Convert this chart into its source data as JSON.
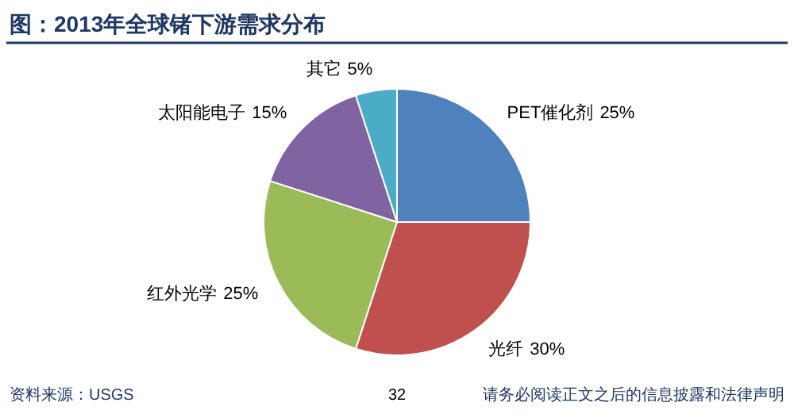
{
  "chart_data": {
    "type": "pie",
    "title": "图：2013年全球锗下游需求分布",
    "categories": [
      "PET催化剂",
      "光纤",
      "红外光学",
      "太阳能电子",
      "其它"
    ],
    "values": [
      25,
      30,
      25,
      15,
      5
    ],
    "colors": [
      "#4f81bd",
      "#c0504d",
      "#9bbb59",
      "#8064a2",
      "#4bacc6"
    ],
    "value_labels": [
      "25%",
      "30%",
      "25%",
      "15%",
      "5%"
    ],
    "annotations": [
      "资料来源：USGS",
      "32",
      "请务必阅读正文之后的信息披露和法律声明"
    ]
  }
}
